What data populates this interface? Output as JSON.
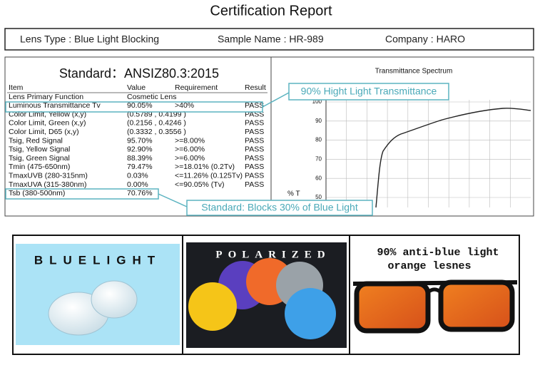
{
  "header": {
    "title": "Certification Report"
  },
  "info": {
    "lens_type": "Lens Type : Blue Light Blocking",
    "sample_name": "Sample Name : HR-989",
    "company": "Company : HARO"
  },
  "report": {
    "standard": "Standard：ANSIZ80.3:2015",
    "columns": [
      "Item",
      "Value",
      "Requirement",
      "Result"
    ],
    "rows": [
      {
        "item": "Lens Primary Function",
        "value": "Cosmetic Lens"
      },
      {
        "item": "Luminous Transmittance Tv",
        "value": "90.05%",
        "requirement": ">40%",
        "result": "PASS"
      },
      {
        "item": "Color Limit, Yellow (x,y)",
        "value": "(0.5789 , 0.4199 )",
        "result": "PASS"
      },
      {
        "item": "Color Limit, Green (x,y)",
        "value": "(0.2156 , 0.4246 )",
        "result": "PASS"
      },
      {
        "item": "Color Limit, D65 (x,y)",
        "value": "(0.3332 , 0.3556 )",
        "result": "PASS"
      },
      {
        "item": "Tsig, Red Signal",
        "value": "95.70%",
        "requirement": ">=8.00%",
        "result": "PASS"
      },
      {
        "item": "Tsig, Yellow Signal",
        "value": "92.90%",
        "requirement": ">=6.00%",
        "result": "PASS"
      },
      {
        "item": "Tsig, Green Signal",
        "value": "88.39%",
        "requirement": ">=6.00%",
        "result": "PASS"
      },
      {
        "item": "Tmin (475-650nm)",
        "value": "79.47%",
        "requirement": ">=18.01% (0.2Tv)",
        "result": "PASS"
      },
      {
        "item": "TmaxUVB (280-315nm)",
        "value": "0.03%",
        "requirement": "<=11.26% (0.125Tv)",
        "result": "PASS"
      },
      {
        "item": "TmaxUVA (315-380nm)",
        "value": "0.00%",
        "requirement": "<=90.05% (Tv)",
        "result": "PASS"
      },
      {
        "item": "Tsb (380-500nm)",
        "value": "70.76%"
      }
    ]
  },
  "callouts": [
    "90% Hight Light Transmittance",
    "Standard: Blocks 30% of Blue Light"
  ],
  "spectrum": {
    "title": "Transmittance Spectrum",
    "y_axis_label": "% T",
    "yticks": [
      100,
      90,
      80,
      70,
      60,
      50
    ]
  },
  "panels": [
    {
      "label": "BLUELIGHT"
    },
    {
      "label": "POLARIZED"
    },
    {
      "lines": [
        "90% anti-blue light",
        "orange lesnes"
      ]
    }
  ]
}
